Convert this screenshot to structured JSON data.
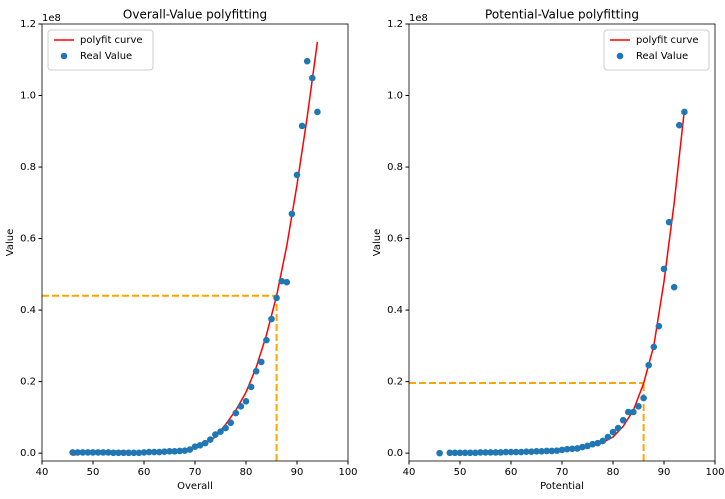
{
  "chart_data": [
    {
      "type": "scatter",
      "title": "Overall-Value polyfitting",
      "x_label": "Overall",
      "y_label": "Value",
      "y_offset_label": "1e8",
      "xlim": [
        40,
        100
      ],
      "xticks": [
        40,
        50,
        60,
        70,
        80,
        90,
        100
      ],
      "ylim": [
        -0.022,
        1.2
      ],
      "yticks": [
        {
          "value": 0,
          "label": "0.0"
        },
        0.2,
        0.4,
        0.6,
        0.8,
        {
          "value": 1,
          "label": "1.0"
        },
        1.2
      ],
      "legend": "upper left",
      "series": [
        {
          "name": "polyfit curve",
          "type": "line",
          "color": "#ff0000",
          "x": [
            46,
            48,
            50,
            52,
            54,
            56,
            58,
            60,
            62,
            64,
            66,
            68,
            70,
            72,
            74,
            76,
            78,
            80,
            82,
            84,
            86,
            88,
            90,
            92,
            94
          ],
          "values": [
            -0.006,
            0.0,
            0.003,
            0.005,
            0.006,
            0.006,
            0.004,
            0.003,
            0.003,
            0.004,
            0.006,
            0.009,
            0.016,
            0.027,
            0.045,
            0.08,
            0.12,
            0.17,
            0.24,
            0.33,
            0.44,
            0.58,
            0.75,
            0.94,
            1.15
          ]
        },
        {
          "name": "Real Value",
          "type": "scatter",
          "color": "#1f77b4",
          "x": [
            46,
            47,
            48,
            49,
            50,
            51,
            52,
            53,
            54,
            55,
            56,
            57,
            58,
            59,
            60,
            61,
            62,
            63,
            64,
            65,
            66,
            67,
            68,
            69,
            70,
            71,
            72,
            73,
            74,
            75,
            76,
            77,
            78,
            79,
            80,
            81,
            82,
            83,
            84,
            85,
            86,
            87,
            88,
            89,
            90,
            91,
            92,
            93,
            94
          ],
          "values": [
            0.002,
            0.002,
            0.002,
            0.002,
            0.002,
            0.002,
            0.002,
            0.002,
            0.001,
            0.001,
            0.001,
            0.001,
            0.001,
            0.001,
            0.002,
            0.003,
            0.003,
            0.003,
            0.004,
            0.005,
            0.005,
            0.006,
            0.007,
            0.01,
            0.018,
            0.022,
            0.028,
            0.038,
            0.052,
            0.06,
            0.07,
            0.085,
            0.112,
            0.131,
            0.145,
            0.185,
            0.229,
            0.255,
            0.316,
            0.375,
            0.434,
            0.481,
            0.478,
            0.669,
            0.778,
            0.915,
            1.096,
            1.049,
            0.954
          ]
        }
      ],
      "reference": {
        "x": 86,
        "y": 0.44,
        "color": "#ffa500"
      }
    },
    {
      "type": "scatter",
      "title": "Potential-Value polyfitting",
      "x_label": "Potential",
      "y_label": "Value",
      "y_offset_label": "1e8",
      "xlim": [
        40,
        100
      ],
      "xticks": [
        40,
        50,
        60,
        70,
        80,
        90,
        100
      ],
      "ylim": [
        -0.022,
        1.2
      ],
      "yticks": [
        {
          "value": 0,
          "label": "0.0"
        },
        0.2,
        0.4,
        0.6,
        0.8,
        {
          "value": 1,
          "label": "1.0"
        },
        1.2
      ],
      "legend": "upper right",
      "series": [
        {
          "name": "polyfit curve",
          "type": "line",
          "color": "#ff0000",
          "x": [
            48,
            50,
            55,
            60,
            65,
            70,
            75,
            78,
            80,
            82,
            84,
            86,
            88,
            90,
            92,
            94
          ],
          "values": [
            0.003,
            0.004,
            0.003,
            0.004,
            0.006,
            0.01,
            0.02,
            0.03,
            0.045,
            0.075,
            0.12,
            0.195,
            0.3,
            0.48,
            0.7,
            0.96
          ]
        },
        {
          "name": "Real Value",
          "type": "scatter",
          "color": "#1f77b4",
          "x": [
            46,
            48,
            49,
            50,
            51,
            52,
            53,
            54,
            55,
            56,
            57,
            58,
            59,
            60,
            61,
            62,
            63,
            64,
            65,
            66,
            67,
            68,
            69,
            70,
            71,
            72,
            73,
            74,
            75,
            76,
            77,
            78,
            79,
            80,
            81,
            82,
            83,
            84,
            85,
            86,
            87,
            88,
            89,
            90,
            91,
            92,
            93,
            94
          ],
          "values": [
            0.0,
            0.001,
            0.001,
            0.001,
            0.001,
            0.001,
            0.001,
            0.002,
            0.002,
            0.002,
            0.002,
            0.002,
            0.003,
            0.003,
            0.003,
            0.003,
            0.004,
            0.004,
            0.005,
            0.005,
            0.006,
            0.006,
            0.007,
            0.009,
            0.011,
            0.012,
            0.013,
            0.017,
            0.02,
            0.025,
            0.028,
            0.034,
            0.045,
            0.059,
            0.07,
            0.092,
            0.115,
            0.115,
            0.131,
            0.154,
            0.246,
            0.297,
            0.355,
            0.515,
            0.646,
            0.464,
            0.917,
            0.954
          ]
        }
      ],
      "reference": {
        "x": 86,
        "y": 0.196,
        "color": "#ffa500"
      }
    }
  ]
}
